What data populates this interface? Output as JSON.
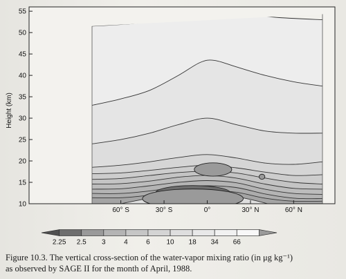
{
  "chart_data": {
    "type": "contour",
    "title": "",
    "xlabel": "",
    "ylabel": "Height (km)",
    "x_ticks": [
      "60° S",
      "30° S",
      "0°",
      "30° N",
      "60° N"
    ],
    "x_tick_values": [
      -60,
      -30,
      0,
      30,
      60
    ],
    "xlim": [
      -80,
      80
    ],
    "y_ticks": [
      10,
      15,
      20,
      25,
      30,
      35,
      40,
      45,
      50,
      55
    ],
    "ylim": [
      10,
      56
    ],
    "colorbar": {
      "labels": [
        "2.25",
        "2.5",
        "3",
        "4",
        "6",
        "10",
        "18",
        "34",
        "66"
      ],
      "levels": [
        2.25,
        2.5,
        3,
        4,
        6,
        10,
        18,
        34,
        66
      ],
      "extend": "both",
      "colors": [
        "#505050",
        "#6e6e6e",
        "#9a9a9a",
        "#b4b4b4",
        "#c6c6c6",
        "#d4d4d4",
        "#dedede",
        "#e8e8e8",
        "#f1f1f1",
        "#f8f8f8",
        "#9a9a9a"
      ]
    },
    "contours": [
      {
        "level": 6,
        "points": [
          [
            -80,
            51.5
          ],
          [
            -55,
            52
          ],
          [
            -30,
            52.8
          ],
          [
            -10,
            54
          ],
          [
            0,
            54.5
          ],
          [
            20,
            54.3
          ],
          [
            50,
            53.5
          ],
          [
            80,
            53
          ]
        ]
      },
      {
        "level": 5,
        "points": [
          [
            -80,
            33
          ],
          [
            -60,
            34.5
          ],
          [
            -40,
            36.5
          ],
          [
            -20,
            40
          ],
          [
            -5,
            43
          ],
          [
            5,
            43.5
          ],
          [
            20,
            42
          ],
          [
            40,
            40
          ],
          [
            60,
            38.5
          ],
          [
            80,
            37.5
          ]
        ]
      },
      {
        "level": 4.5,
        "points": [
          [
            -80,
            24
          ],
          [
            -60,
            25
          ],
          [
            -40,
            26.5
          ],
          [
            -20,
            28.5
          ],
          [
            0,
            30
          ],
          [
            20,
            28.5
          ],
          [
            40,
            27
          ],
          [
            60,
            26.5
          ],
          [
            80,
            26.5
          ]
        ]
      },
      {
        "level": 4,
        "points": [
          [
            -80,
            18.5
          ],
          [
            -60,
            19
          ],
          [
            -40,
            19.8
          ],
          [
            -20,
            20.8
          ],
          [
            0,
            21.5
          ],
          [
            20,
            20.7
          ],
          [
            40,
            19.5
          ],
          [
            60,
            19.2
          ],
          [
            80,
            19.8
          ]
        ]
      },
      {
        "level": 3.5,
        "points": [
          [
            -80,
            17
          ],
          [
            -60,
            17.2
          ],
          [
            -40,
            17.8
          ],
          [
            -20,
            18.5
          ],
          [
            0,
            19
          ],
          [
            20,
            18.4
          ],
          [
            40,
            17.4
          ],
          [
            60,
            16.6
          ],
          [
            80,
            16.8
          ]
        ]
      },
      {
        "level": 3,
        "points": [
          [
            -80,
            15.7
          ],
          [
            -60,
            15.9
          ],
          [
            -40,
            16.6
          ],
          [
            -20,
            17.3
          ],
          [
            0,
            17.6
          ],
          [
            20,
            17.2
          ],
          [
            40,
            16
          ],
          [
            60,
            15
          ],
          [
            80,
            14.6
          ]
        ]
      },
      {
        "level": 2.75,
        "points": [
          [
            -80,
            14.6
          ],
          [
            -60,
            14.7
          ],
          [
            -40,
            15.3
          ],
          [
            -20,
            16.2
          ],
          [
            0,
            16.6
          ],
          [
            20,
            16
          ],
          [
            40,
            14.6
          ],
          [
            60,
            13.6
          ],
          [
            80,
            13.4
          ]
        ]
      },
      {
        "level": 3.25,
        "points": [
          [
            -80,
            13.4
          ],
          [
            -60,
            13.5
          ],
          [
            -40,
            14.2
          ],
          [
            -20,
            15
          ],
          [
            0,
            15.4
          ],
          [
            20,
            14.9
          ],
          [
            40,
            13.4
          ],
          [
            60,
            12.4
          ],
          [
            80,
            12.2
          ]
        ]
      },
      {
        "level": 4,
        "points": [
          [
            -80,
            12.4
          ],
          [
            -60,
            12.4
          ],
          [
            -40,
            13
          ],
          [
            -20,
            13.9
          ],
          [
            0,
            14.2
          ],
          [
            20,
            13.8
          ],
          [
            40,
            12.3
          ],
          [
            60,
            11.3
          ],
          [
            80,
            11.2
          ]
        ]
      },
      {
        "level": 6,
        "points": [
          [
            -80,
            11.4
          ],
          [
            -60,
            11.4
          ],
          [
            -40,
            12
          ],
          [
            -20,
            12.8
          ],
          [
            0,
            13.1
          ],
          [
            20,
            12.7
          ],
          [
            40,
            11.3
          ],
          [
            60,
            10.6
          ],
          [
            80,
            10.6
          ]
        ]
      },
      {
        "level": 10,
        "points": [
          [
            -60,
            10
          ],
          [
            -45,
            11
          ],
          [
            -30,
            11.8
          ],
          [
            -15,
            12.1
          ],
          [
            0,
            12.2
          ],
          [
            15,
            11.9
          ],
          [
            30,
            11
          ],
          [
            42,
            10
          ]
        ]
      }
    ],
    "features": [
      {
        "type": "minimum",
        "level": 2.25,
        "center": [
          -10,
          12.5
        ],
        "width": 52,
        "height": 3.5
      },
      {
        "type": "minimum",
        "level": 2.5,
        "center": [
          -10,
          11.2
        ],
        "width": 70,
        "height": 4.5
      },
      {
        "type": "minimum",
        "level": 2.25,
        "center": [
          5,
          18
        ],
        "width": 13,
        "height": 1.9
      },
      {
        "type": "minimum",
        "level": 2.5,
        "center": [
          4,
          18
        ],
        "width": 26,
        "height": 3.1
      },
      {
        "type": "minimum",
        "level": 2.5,
        "center": [
          38,
          16.3
        ],
        "width": 4,
        "height": 1.2
      }
    ]
  },
  "caption": {
    "line1": "Figure 10.3. The vertical cross-section of the water-vapor mixing ratio (in μg kg⁻¹)",
    "line2": "as observed by SAGE II for the month of April, 1988."
  }
}
